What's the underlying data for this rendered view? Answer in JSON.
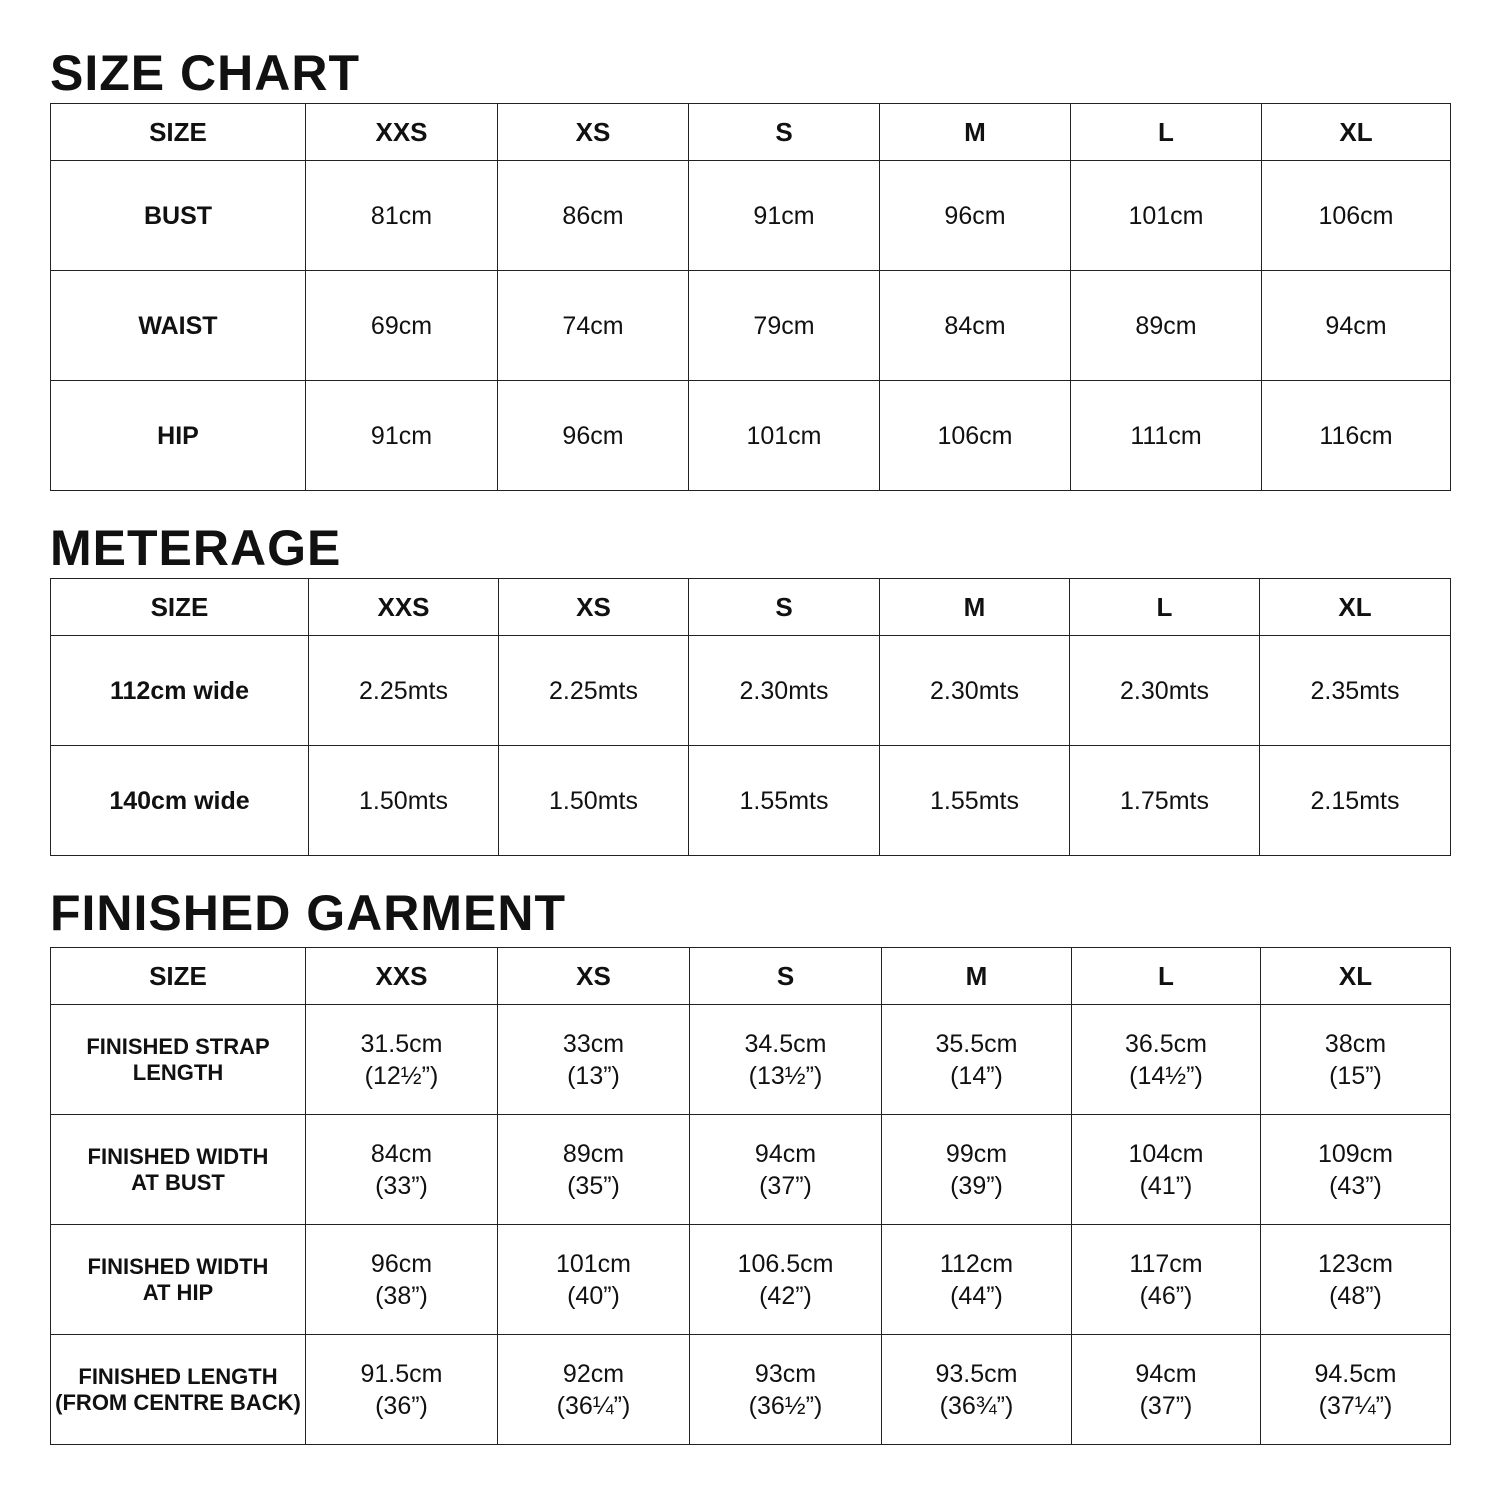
{
  "size_chart": {
    "title": "SIZE CHART",
    "headers": [
      "SIZE",
      "XXS",
      "XS",
      "S",
      "M",
      "L",
      "XL"
    ],
    "rows": [
      {
        "label": [
          "BUST"
        ],
        "values": [
          [
            "81cm"
          ],
          [
            "86cm"
          ],
          [
            "91cm"
          ],
          [
            "96cm"
          ],
          [
            "101cm"
          ],
          [
            "106cm"
          ]
        ]
      },
      {
        "label": [
          "WAIST"
        ],
        "values": [
          [
            "69cm"
          ],
          [
            "74cm"
          ],
          [
            "79cm"
          ],
          [
            "84cm"
          ],
          [
            "89cm"
          ],
          [
            "94cm"
          ]
        ]
      },
      {
        "label": [
          "HIP"
        ],
        "values": [
          [
            "91cm"
          ],
          [
            "96cm"
          ],
          [
            "101cm"
          ],
          [
            "106cm"
          ],
          [
            "111cm"
          ],
          [
            "116cm"
          ]
        ]
      }
    ]
  },
  "meterage": {
    "title": "METERAGE",
    "headers": [
      "SIZE",
      "XXS",
      "XS",
      "S",
      "M",
      "L",
      "XL"
    ],
    "rows": [
      {
        "label": [
          "112cm wide"
        ],
        "values": [
          [
            "2.25mts"
          ],
          [
            "2.25mts"
          ],
          [
            "2.30mts"
          ],
          [
            "2.30mts"
          ],
          [
            "2.30mts"
          ],
          [
            "2.35mts"
          ]
        ]
      },
      {
        "label": [
          "140cm wide"
        ],
        "values": [
          [
            "1.50mts"
          ],
          [
            "1.50mts"
          ],
          [
            "1.55mts"
          ],
          [
            "1.55mts"
          ],
          [
            "1.75mts"
          ],
          [
            "2.15mts"
          ]
        ]
      }
    ]
  },
  "finished_garment": {
    "title": "FINISHED GARMENT",
    "headers": [
      "SIZE",
      "XXS",
      "XS",
      "S",
      "M",
      "L",
      "XL"
    ],
    "rows": [
      {
        "label": [
          "FINISHED STRAP",
          "LENGTH"
        ],
        "values": [
          [
            "31.5cm",
            "(12½”)"
          ],
          [
            "33cm",
            "(13”)"
          ],
          [
            "34.5cm",
            "(13½”)"
          ],
          [
            "35.5cm",
            "(14”)"
          ],
          [
            "36.5cm",
            "(14½”)"
          ],
          [
            "38cm",
            "(15”)"
          ]
        ]
      },
      {
        "label": [
          "FINISHED WIDTH",
          "AT BUST"
        ],
        "values": [
          [
            "84cm",
            "(33”)"
          ],
          [
            "89cm",
            "(35”)"
          ],
          [
            "94cm",
            "(37”)"
          ],
          [
            "99cm",
            "(39”)"
          ],
          [
            "104cm",
            "(41”)"
          ],
          [
            "109cm",
            "(43”)"
          ]
        ]
      },
      {
        "label": [
          "FINISHED WIDTH",
          "AT HIP"
        ],
        "values": [
          [
            "96cm",
            "(38”)"
          ],
          [
            "101cm",
            "(40”)"
          ],
          [
            "106.5cm",
            "(42”)"
          ],
          [
            "112cm",
            "(44”)"
          ],
          [
            "117cm",
            "(46”)"
          ],
          [
            "123cm",
            "(48”)"
          ]
        ]
      },
      {
        "label": [
          "FINISHED LENGTH",
          "(FROM CENTRE BACK)"
        ],
        "values": [
          [
            "91.5cm",
            "(36”)"
          ],
          [
            "92cm",
            "(36¼”)"
          ],
          [
            "93cm",
            "(36½”)"
          ],
          [
            "93.5cm",
            "(36¾”)"
          ],
          [
            "94cm",
            "(37”)"
          ],
          [
            "94.5cm",
            "(37¼”)"
          ]
        ]
      }
    ]
  }
}
